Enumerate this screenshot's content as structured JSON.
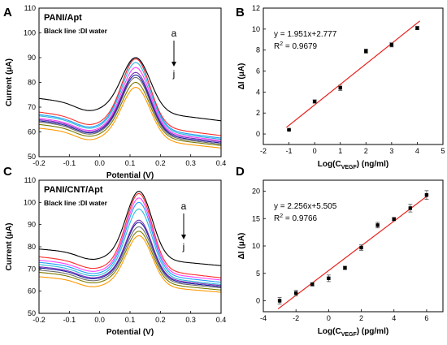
{
  "chart_data": [
    {
      "panel": "A",
      "type": "line",
      "label": "PANI/Apt",
      "note": "Black line :DI water",
      "xlabel": "Potential (V)",
      "ylabel": "Current (μA)",
      "xlim": [
        -0.2,
        0.4
      ],
      "ylim": [
        50,
        110
      ],
      "xticks": [
        "-0.2",
        "-0.1",
        "0.0",
        "0.1",
        "0.2",
        "0.3",
        "0.4"
      ],
      "yticks": [
        "50",
        "60",
        "70",
        "80",
        "90",
        "100",
        "110"
      ],
      "arrow_top": "a",
      "arrow_bottom": "j",
      "curve_model": {
        "center": 0.12,
        "width": 0.065
      },
      "series": [
        {
          "base_left": 73.5,
          "base_right": 64.5,
          "peak": 90.0,
          "color": "#000000"
        },
        {
          "base_left": 68.0,
          "base_right": 58.5,
          "peak": 89.5,
          "color": "#ff2a2a"
        },
        {
          "base_left": 67.0,
          "base_right": 57.5,
          "peak": 90.0,
          "color": "#1f9bff"
        },
        {
          "base_left": 66.5,
          "base_right": 57.0,
          "peak": 88.0,
          "color": "#2db8d8"
        },
        {
          "base_left": 65.5,
          "base_right": 56.5,
          "peak": 86.0,
          "color": "#ff40ff"
        },
        {
          "base_left": 65.0,
          "base_right": 56.0,
          "peak": 84.0,
          "color": "#7a2fb8"
        },
        {
          "base_left": 64.5,
          "base_right": 55.5,
          "peak": 83.0,
          "color": "#1a1aa0"
        },
        {
          "base_left": 64.0,
          "base_right": 55.0,
          "peak": 82.0,
          "color": "#6b6b6b"
        },
        {
          "base_left": 63.0,
          "base_right": 54.5,
          "peak": 80.0,
          "color": "#7a7a00"
        },
        {
          "base_left": 61.5,
          "base_right": 53.5,
          "peak": 78.0,
          "color": "#ff9900"
        }
      ]
    },
    {
      "panel": "B",
      "type": "scatter",
      "xlabel": "Log(C",
      "xlabel_sub": "VEGF",
      "xlabel_unit": ") (ng/ml)",
      "ylabel": "ΔI (μA)",
      "xlim": [
        -2,
        5
      ],
      "ylim": [
        -1,
        12
      ],
      "xticks": [
        "-2",
        "-1",
        "0",
        "1",
        "2",
        "3",
        "4",
        "5"
      ],
      "yticks": [
        "0",
        "2",
        "4",
        "6",
        "8",
        "10",
        "12"
      ],
      "equation": "y = 1.951x+2.777",
      "r2_label": "R",
      "r2_sup": "2",
      "r2_value": " = 0.9679",
      "fit": {
        "slope": 1.951,
        "intercept": 2.777,
        "x_from": -1,
        "x_to": 4
      },
      "points": [
        {
          "x": -1,
          "y": 0.4,
          "err": 0.05
        },
        {
          "x": 0,
          "y": 3.1,
          "err": 0.15
        },
        {
          "x": 1,
          "y": 4.4,
          "err": 0.25
        },
        {
          "x": 2,
          "y": 7.9,
          "err": 0.2
        },
        {
          "x": 3,
          "y": 8.5,
          "err": 0.2
        },
        {
          "x": 4,
          "y": 10.1,
          "err": 0.15
        }
      ]
    },
    {
      "panel": "C",
      "type": "line",
      "label": "PANI/CNT/Apt",
      "note": "Black line :DI water",
      "xlabel": "Potential (V)",
      "ylabel": "Current (μA)",
      "xlim": [
        -0.2,
        0.4
      ],
      "ylim": [
        50,
        110
      ],
      "xticks": [
        "-0.2",
        "-0.1",
        "0.0",
        "0.1",
        "0.2",
        "0.3",
        "0.4"
      ],
      "yticks": [
        "50",
        "60",
        "70",
        "80",
        "90",
        "100",
        "110"
      ],
      "arrow_top": "a",
      "arrow_bottom": "j",
      "curve_model": {
        "center": 0.13,
        "width": 0.06
      },
      "series": [
        {
          "base_left": 79.0,
          "base_right": 71.5,
          "peak": 105.0,
          "color": "#000000"
        },
        {
          "base_left": 75.5,
          "base_right": 66.0,
          "peak": 104.0,
          "color": "#ff2a2a"
        },
        {
          "base_left": 74.0,
          "base_right": 65.0,
          "peak": 102.0,
          "color": "#ff40ff"
        },
        {
          "base_left": 73.0,
          "base_right": 64.0,
          "peak": 100.0,
          "color": "#1f9bff"
        },
        {
          "base_left": 72.0,
          "base_right": 63.0,
          "peak": 97.0,
          "color": "#2db8d8"
        },
        {
          "base_left": 71.0,
          "base_right": 62.5,
          "peak": 92.0,
          "color": "#7a2fb8"
        },
        {
          "base_left": 70.5,
          "base_right": 62.0,
          "peak": 91.0,
          "color": "#1a1aa0"
        },
        {
          "base_left": 69.5,
          "base_right": 61.5,
          "peak": 89.0,
          "color": "#6b6b6b"
        },
        {
          "base_left": 68.5,
          "base_right": 60.5,
          "peak": 87.0,
          "color": "#7a7a00"
        },
        {
          "base_left": 66.5,
          "base_right": 59.5,
          "peak": 85.0,
          "color": "#ff9900"
        }
      ]
    },
    {
      "panel": "D",
      "type": "scatter",
      "xlabel": "Log(C",
      "xlabel_sub": "VEGF",
      "xlabel_unit": ") (pg/ml)",
      "ylabel": "ΔI (μA)",
      "xlim": [
        -4,
        7
      ],
      "ylim": [
        -2,
        22
      ],
      "xticks": [
        "-4",
        "-2",
        "0",
        "2",
        "4",
        "6"
      ],
      "yticks": [
        "0",
        "5",
        "10",
        "15",
        "20"
      ],
      "equation": "y = 2.256x+5.505",
      "r2_label": "R",
      "r2_sup": "2",
      "r2_value": " = 0.9766",
      "fit": {
        "slope": 2.256,
        "intercept": 5.505,
        "x_from": -3,
        "x_to": 6
      },
      "points": [
        {
          "x": -3,
          "y": 0.0,
          "err": 0.6
        },
        {
          "x": -2,
          "y": 1.4,
          "err": 0.5
        },
        {
          "x": -1,
          "y": 3.0,
          "err": 0.3
        },
        {
          "x": 0,
          "y": 4.1,
          "err": 0.6
        },
        {
          "x": 1,
          "y": 6.0,
          "err": 0.3
        },
        {
          "x": 2,
          "y": 9.7,
          "err": 0.5
        },
        {
          "x": 3,
          "y": 13.8,
          "err": 0.5
        },
        {
          "x": 4,
          "y": 14.9,
          "err": 0.3
        },
        {
          "x": 5,
          "y": 16.9,
          "err": 0.7
        },
        {
          "x": 6,
          "y": 19.3,
          "err": 0.8
        }
      ]
    }
  ],
  "fit_color": "#e8201a",
  "marker_color": "#000000"
}
